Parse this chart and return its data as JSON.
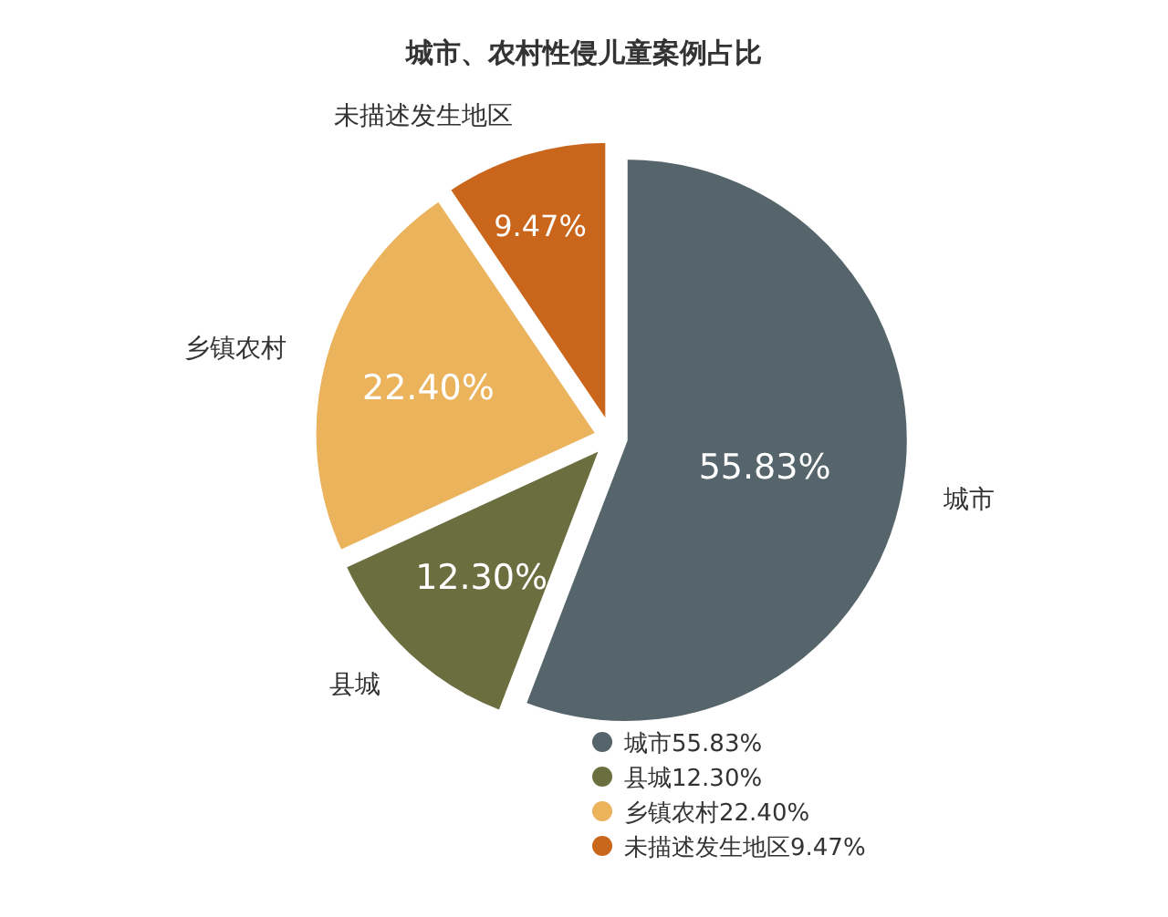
{
  "chart_data": {
    "type": "pie",
    "title": "城市、农村性侵儿童案例占比",
    "categories": [
      "城市",
      "县城",
      "乡镇农村",
      "未描述发生地区"
    ],
    "values": [
      55.83,
      12.3,
      22.4,
      9.47
    ],
    "value_labels": [
      "55.83%",
      "12.30%",
      "22.40%",
      "9.47%"
    ],
    "colors": [
      "#55656b",
      "#6b6f3f",
      "#eab35c",
      "#c9661b"
    ],
    "legend": "bottom"
  }
}
